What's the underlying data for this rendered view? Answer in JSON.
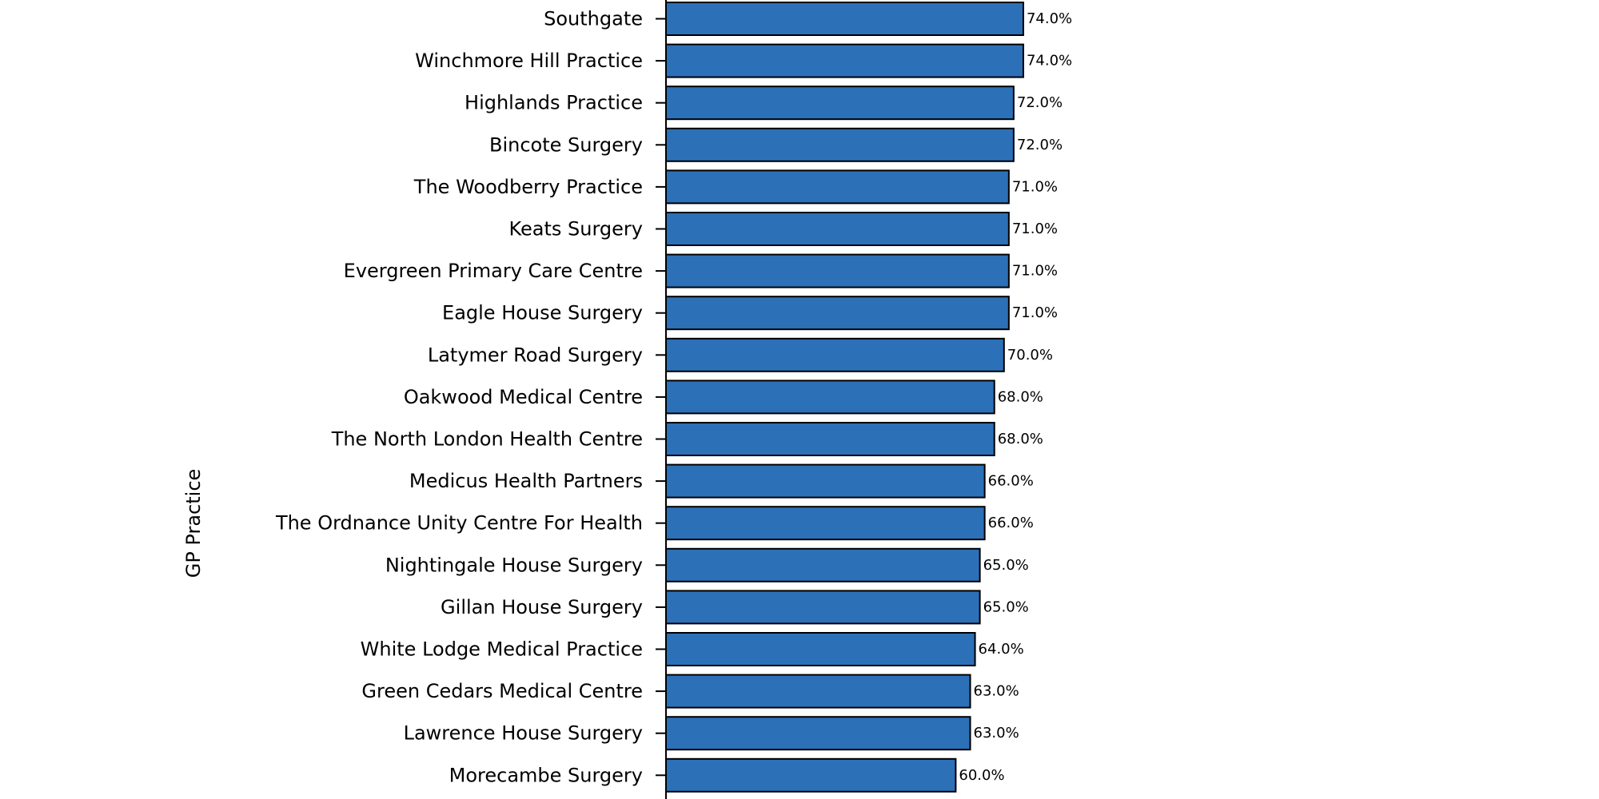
{
  "chart_data": {
    "type": "bar",
    "orientation": "horizontal",
    "title": "",
    "xlabel": "",
    "ylabel": "GP Practice",
    "xlim": [
      0,
      100
    ],
    "bar_color": "#2c70b8",
    "edge_color": "#000000",
    "categories": [
      "Southgate",
      "Winchmore Hill Practice",
      "Highlands Practice",
      "Bincote Surgery",
      "The Woodberry Practice",
      "Keats Surgery",
      "Evergreen Primary Care Centre",
      "Eagle House Surgery",
      "Latymer Road Surgery",
      "Oakwood Medical Centre",
      "The North London Health Centre",
      "Medicus Health Partners",
      "The Ordnance Unity Centre For Health",
      "Nightingale House Surgery",
      "Gillan House Surgery",
      "White Lodge Medical Practice",
      "Green Cedars Medical Centre",
      "Lawrence House Surgery",
      "Morecambe Surgery"
    ],
    "values": [
      74,
      74,
      72,
      72,
      71,
      71,
      71,
      71,
      70,
      68,
      68,
      66,
      66,
      65,
      65,
      64,
      63,
      63,
      60
    ],
    "value_labels": [
      "74.0%",
      "74.0%",
      "72.0%",
      "72.0%",
      "71.0%",
      "71.0%",
      "71.0%",
      "71.0%",
      "70.0%",
      "68.0%",
      "68.0%",
      "66.0%",
      "66.0%",
      "65.0%",
      "65.0%",
      "64.0%",
      "63.0%",
      "63.0%",
      "60.0%"
    ]
  }
}
